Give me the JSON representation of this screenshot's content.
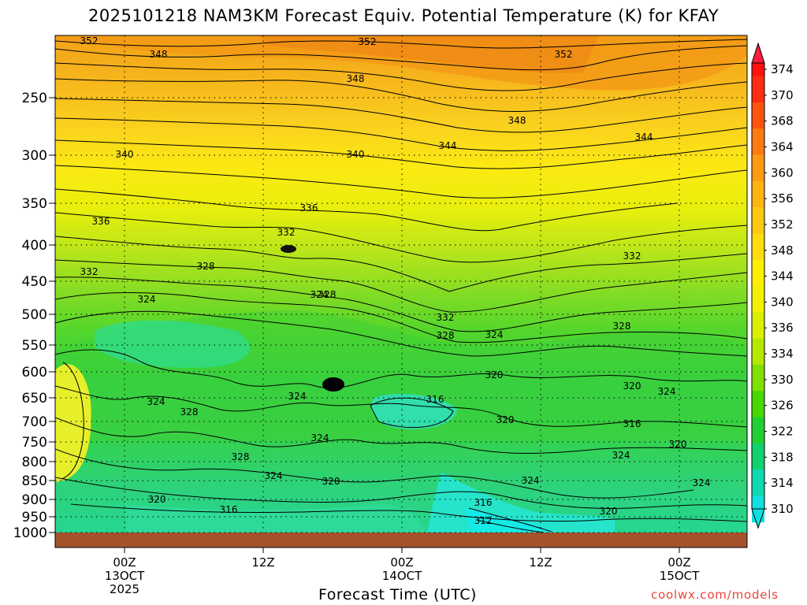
{
  "title": "2025101218 NAM3KM Forecast Equiv. Potential Temperature (K) for KFAY",
  "xlabel": "Forecast Time (UTC)",
  "credit": "coolwx.com/models",
  "y_ticks": [
    "250",
    "300",
    "350",
    "400",
    "450",
    "500",
    "550",
    "600",
    "650",
    "700",
    "750",
    "800",
    "850",
    "900",
    "950",
    "1000"
  ],
  "x_ticks": [
    {
      "lines": [
        "00Z",
        "13OCT",
        "2025"
      ]
    },
    {
      "lines": [
        "12Z"
      ]
    },
    {
      "lines": [
        "00Z",
        "14OCT"
      ]
    },
    {
      "lines": [
        "12Z"
      ]
    },
    {
      "lines": [
        "00Z",
        "15OCT"
      ]
    }
  ],
  "colorbar": {
    "labels": [
      "374",
      "370",
      "368",
      "364",
      "360",
      "356",
      "352",
      "348",
      "344",
      "340",
      "336",
      "334",
      "330",
      "326",
      "322",
      "318",
      "314",
      "310"
    ],
    "colors": [
      "#ff1010",
      "#ff2e10",
      "#ff5410",
      "#ff7a10",
      "#ff9a10",
      "#ffb410",
      "#ffc810",
      "#ffdc10",
      "#fff000",
      "#f2f200",
      "#d8f000",
      "#b4e800",
      "#80e000",
      "#48d800",
      "#20d030",
      "#10d070",
      "#10d8b0",
      "#10e0e0"
    ]
  },
  "contour_labels": [
    {
      "text": "352",
      "role": "upper"
    },
    {
      "text": "352",
      "role": "upper"
    },
    {
      "text": "352",
      "role": "upper"
    },
    {
      "text": "348",
      "role": "upper"
    },
    {
      "text": "348",
      "role": "upper"
    },
    {
      "text": "348",
      "role": "upper"
    },
    {
      "text": "344",
      "role": "upper"
    },
    {
      "text": "344",
      "role": "upper"
    },
    {
      "text": "340",
      "role": "mid"
    },
    {
      "text": "340",
      "role": "mid"
    },
    {
      "text": "336",
      "role": "mid"
    },
    {
      "text": "336",
      "role": "mid"
    },
    {
      "text": "332",
      "role": "mid"
    },
    {
      "text": "332",
      "role": "mid"
    },
    {
      "text": "332",
      "role": "mid"
    },
    {
      "text": "332",
      "role": "mid"
    },
    {
      "text": "328",
      "role": "mid"
    },
    {
      "text": "328",
      "role": "mid"
    },
    {
      "text": "328",
      "role": "mid"
    },
    {
      "text": "328",
      "role": "mid"
    },
    {
      "text": "328",
      "role": "mid"
    },
    {
      "text": "328",
      "role": "mid"
    },
    {
      "text": "324",
      "role": "low"
    },
    {
      "text": "324",
      "role": "low"
    },
    {
      "text": "324",
      "role": "low"
    },
    {
      "text": "324",
      "role": "low"
    },
    {
      "text": "324",
      "role": "low"
    },
    {
      "text": "324",
      "role": "low"
    },
    {
      "text": "324",
      "role": "low"
    },
    {
      "text": "324",
      "role": "low"
    },
    {
      "text": "324",
      "role": "low"
    },
    {
      "text": "324",
      "role": "low"
    },
    {
      "text": "324",
      "role": "low"
    },
    {
      "text": "320",
      "role": "low"
    },
    {
      "text": "320",
      "role": "low"
    },
    {
      "text": "320",
      "role": "low"
    },
    {
      "text": "320",
      "role": "low"
    },
    {
      "text": "320",
      "role": "low"
    },
    {
      "text": "320",
      "role": "low"
    },
    {
      "text": "320",
      "role": "low"
    },
    {
      "text": "316",
      "role": "low"
    },
    {
      "text": "316",
      "role": "low"
    },
    {
      "text": "316",
      "role": "low"
    },
    {
      "text": "316",
      "role": "low"
    },
    {
      "text": "312",
      "role": "low"
    }
  ]
}
